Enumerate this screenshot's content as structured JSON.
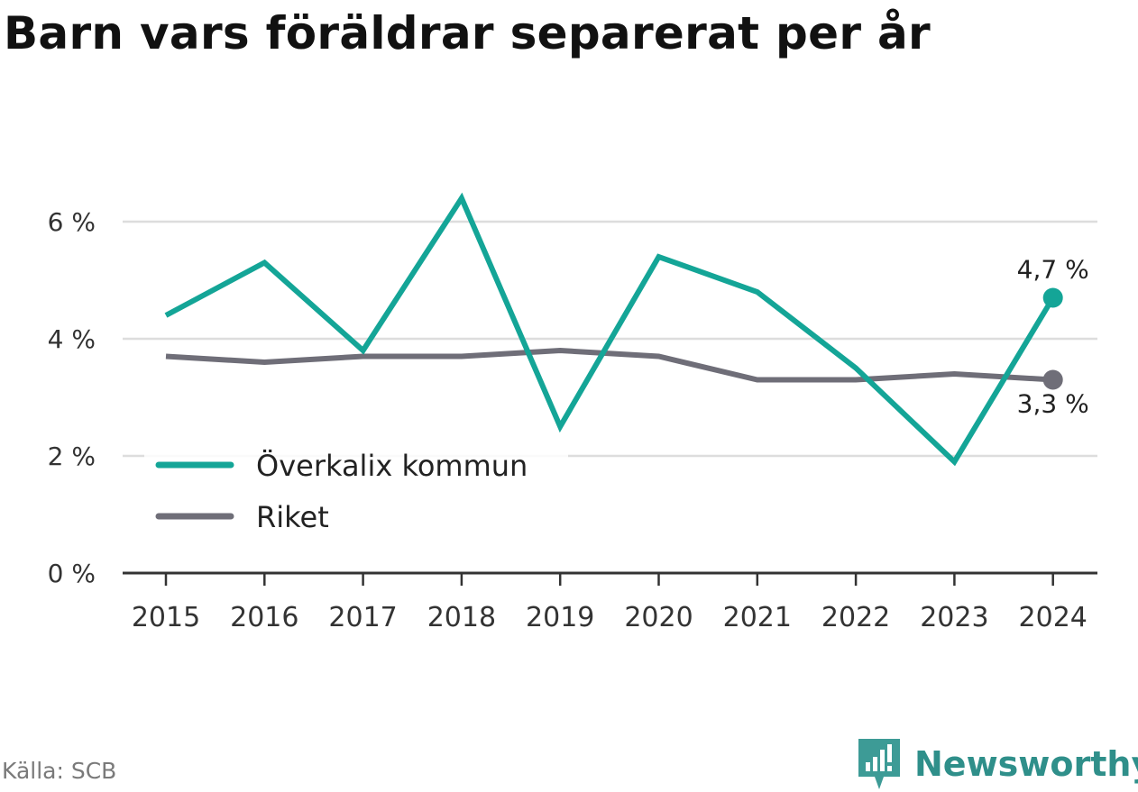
{
  "title": "Barn vars föräldrar separerat per år",
  "source": "Källa: SCB",
  "brand": {
    "name": "Newsworthy",
    "icon": "newsworthy-logo-icon"
  },
  "colors": {
    "series_kommun": "#14a597",
    "series_riket": "#6f6e78",
    "gridline": "#dddddd",
    "axis": "#333333",
    "brand": "#2f8f8a"
  },
  "chart_data": {
    "type": "line",
    "x": [
      "2015",
      "2016",
      "2017",
      "2018",
      "2019",
      "2020",
      "2021",
      "2022",
      "2023",
      "2024"
    ],
    "series": [
      {
        "name": "Överkalix kommun",
        "values": [
          4.4,
          5.3,
          3.8,
          6.4,
          2.5,
          5.4,
          4.8,
          3.5,
          1.9,
          4.7
        ],
        "end_label": "4,7 %"
      },
      {
        "name": "Riket",
        "values": [
          3.7,
          3.6,
          3.7,
          3.7,
          3.8,
          3.7,
          3.3,
          3.3,
          3.4,
          3.3
        ],
        "end_label": "3,3 %"
      }
    ],
    "y_ticks": [
      {
        "value": 0,
        "label": "0 %"
      },
      {
        "value": 2,
        "label": "2 %"
      },
      {
        "value": 4,
        "label": "4 %"
      },
      {
        "value": 6,
        "label": "6 %"
      }
    ],
    "ylim": [
      0,
      6.8
    ],
    "grid": true,
    "legend_position": "bottom-left"
  }
}
